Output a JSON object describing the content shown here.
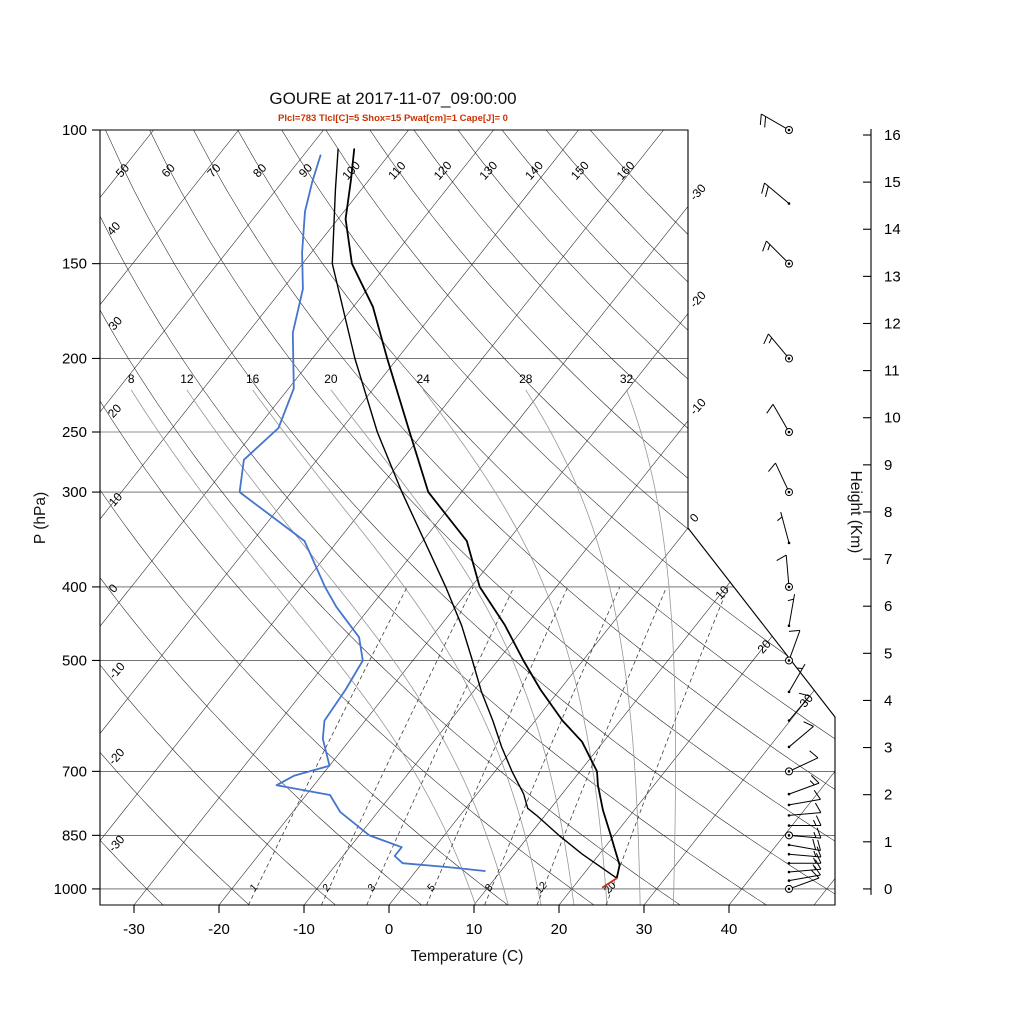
{
  "chart_data": {
    "type": "line",
    "variant": "skew-t log-p atmospheric sounding",
    "title": "GOURE at 2017-11-07_09:00:00",
    "stats_line": "Plcl=783 Tlcl[C]=5 Shox=15 Pwat[cm]=1 Cape[J]= 0",
    "x_axis": {
      "label": "Temperature (C)",
      "ticks": [
        -30,
        -20,
        -10,
        0,
        10,
        20,
        30,
        40
      ]
    },
    "y_axis": {
      "label": "P (hPa)",
      "scale": "log",
      "range": [
        100,
        1050
      ],
      "ticks": [
        100,
        150,
        200,
        250,
        300,
        400,
        500,
        700,
        850,
        1000
      ]
    },
    "height_axis": {
      "label": "Height (Km)",
      "unit": "km",
      "ticks": [
        0,
        1,
        2,
        3,
        4,
        5,
        6,
        7,
        8,
        9,
        10,
        11,
        12,
        13,
        14,
        15,
        16
      ]
    },
    "grid": {
      "isotherms_c": {
        "start": -120,
        "end": 50,
        "step": 10
      },
      "dry_adiabats_c": {
        "start": -30,
        "end": 160,
        "step": 10
      },
      "dry_adiabat_left_labels": [
        40,
        30,
        20,
        10,
        0,
        -10,
        -20,
        -30
      ],
      "dry_adiabat_top_labels": [
        50,
        60,
        70,
        80,
        90,
        100,
        110,
        120,
        130,
        140,
        150,
        160
      ],
      "isotherm_right_labels": [
        0,
        -10,
        -20,
        -30
      ],
      "isotherm_diagonal_labels": [
        10,
        20,
        30
      ],
      "moist_adiabats_c": [
        8,
        12,
        16,
        20,
        24,
        28,
        32
      ],
      "mixing_ratio_g_kg": [
        1,
        2,
        3,
        5,
        8,
        12,
        20
      ]
    },
    "series": [
      {
        "name": "temperature",
        "color": "#000000",
        "points_p_t": [
          [
            968,
            24.3
          ],
          [
            930,
            23.4
          ],
          [
            885,
            21.3
          ],
          [
            850,
            19.6
          ],
          [
            787,
            16.3
          ],
          [
            730,
            13.4
          ],
          [
            700,
            12.0
          ],
          [
            640,
            7.5
          ],
          [
            600,
            3.2
          ],
          [
            546,
            -2.3
          ],
          [
            500,
            -7.0
          ],
          [
            449,
            -12.5
          ],
          [
            400,
            -19.0
          ],
          [
            348,
            -24.8
          ],
          [
            300,
            -33.9
          ],
          [
            250,
            -41.7
          ],
          [
            200,
            -51.2
          ],
          [
            171,
            -57.7
          ],
          [
            150,
            -64.2
          ],
          [
            131,
            -69.1
          ],
          [
            116,
            -72.2
          ],
          [
            106,
            -74.6
          ]
        ]
      },
      {
        "name": "parcel",
        "color": "#000000",
        "points_p_t": [
          [
            968,
            24.3
          ],
          [
            900,
            18.0
          ],
          [
            850,
            13.5
          ],
          [
            800,
            9.0
          ],
          [
            783,
            7.3
          ],
          [
            750,
            5.5
          ],
          [
            700,
            2.0
          ],
          [
            650,
            -1.5
          ],
          [
            600,
            -5.0
          ],
          [
            550,
            -9.0
          ],
          [
            500,
            -13.0
          ],
          [
            450,
            -17.5
          ],
          [
            400,
            -23.0
          ],
          [
            350,
            -29.5
          ],
          [
            300,
            -37.0
          ],
          [
            250,
            -45.5
          ],
          [
            200,
            -55.0
          ],
          [
            150,
            -66.5
          ],
          [
            120,
            -73.0
          ],
          [
            106,
            -76.5
          ]
        ]
      },
      {
        "name": "dewpoint",
        "color": "#4575cd",
        "points_p_t": [
          [
            947,
            8.1
          ],
          [
            936,
            3.4
          ],
          [
            925,
            -2.3
          ],
          [
            905,
            -3.9
          ],
          [
            881,
            -3.9
          ],
          [
            850,
            -8.8
          ],
          [
            792,
            -14.4
          ],
          [
            752,
            -17.2
          ],
          [
            730,
            -24.4
          ],
          [
            709,
            -23.2
          ],
          [
            688,
            -20.0
          ],
          [
            634,
            -23.3
          ],
          [
            600,
            -24.8
          ],
          [
            546,
            -25.2
          ],
          [
            500,
            -25.9
          ],
          [
            466,
            -28.5
          ],
          [
            425,
            -34.0
          ],
          [
            400,
            -37.2
          ],
          [
            348,
            -43.9
          ],
          [
            300,
            -56.1
          ],
          [
            272,
            -58.6
          ],
          [
            247,
            -57.5
          ],
          [
            219,
            -59.4
          ],
          [
            185,
            -64.7
          ],
          [
            162,
            -67.6
          ],
          [
            145,
            -71.1
          ],
          [
            128,
            -74.6
          ],
          [
            117,
            -76.5
          ],
          [
            108,
            -78.0
          ]
        ]
      },
      {
        "name": "surface-segment",
        "color": "#c03018",
        "points_p_t": [
          [
            995,
            23.5
          ],
          [
            968,
            24.3
          ]
        ]
      }
    ],
    "wind_barbs": {
      "levels_p_dir_spd": [
        [
          1000,
          70,
          10
        ],
        [
          975,
          80,
          10
        ],
        [
          950,
          85,
          15
        ],
        [
          925,
          90,
          15
        ],
        [
          900,
          95,
          15
        ],
        [
          875,
          100,
          20
        ],
        [
          850,
          95,
          15
        ],
        [
          825,
          90,
          15
        ],
        [
          800,
          85,
          10
        ],
        [
          775,
          80,
          10
        ],
        [
          750,
          70,
          15
        ],
        [
          700,
          65,
          10
        ],
        [
          650,
          50,
          10
        ],
        [
          600,
          40,
          10
        ],
        [
          550,
          30,
          5
        ],
        [
          500,
          20,
          10
        ],
        [
          450,
          10,
          5
        ],
        [
          400,
          355,
          10
        ],
        [
          350,
          345,
          5
        ],
        [
          300,
          335,
          10
        ],
        [
          250,
          330,
          10
        ],
        [
          200,
          320,
          15
        ],
        [
          150,
          315,
          15
        ],
        [
          125,
          310,
          20
        ],
        [
          100,
          300,
          20
        ]
      ],
      "circle_levels": [
        1000,
        850,
        700,
        500,
        400,
        300,
        250,
        200,
        150,
        100
      ]
    },
    "colors": {
      "dewpoint": "#4575cd",
      "temperature": "#000000",
      "stats_text": "#cc3300",
      "grid": "#222222",
      "moist_adiabat": "#979797"
    }
  }
}
